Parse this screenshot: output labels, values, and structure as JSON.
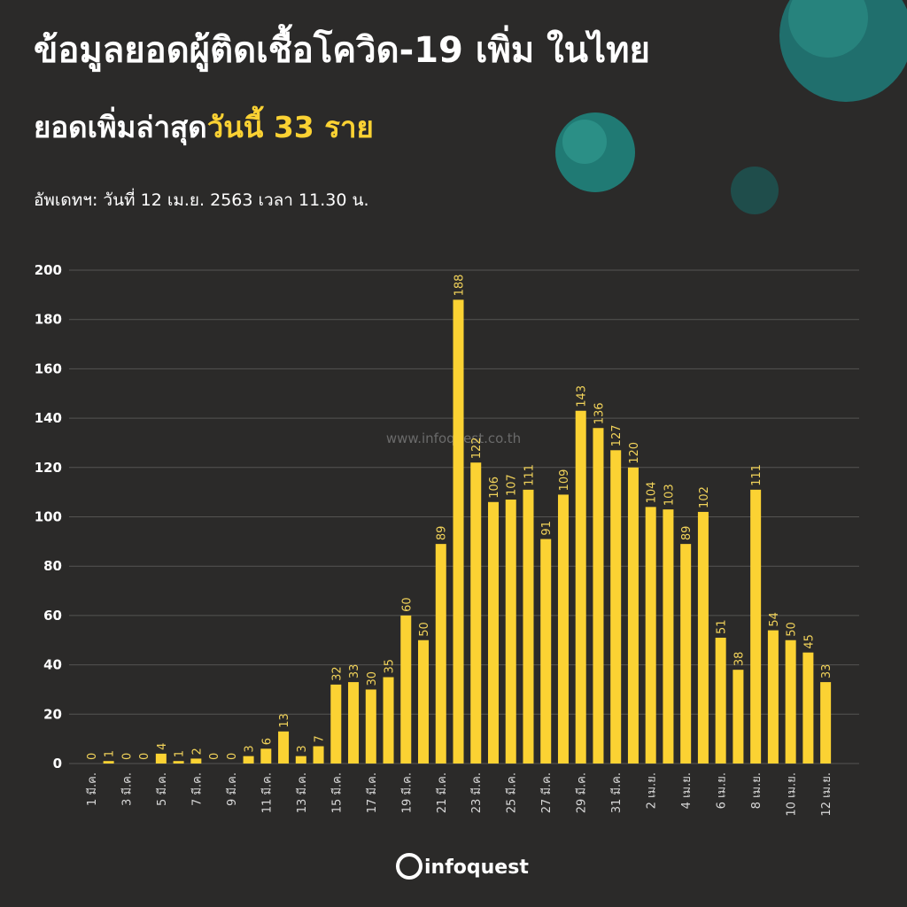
{
  "chart_data": {
    "type": "bar",
    "title": "ข้อมูลยอดผู้ติดเชื้อโควิด-19 เพิ่ม ในไทย",
    "subtitle": [
      "ยอดเพิ่มล่าสุด",
      "วันนี้ 33 ราย"
    ],
    "update_note": "อัพเดทฯ: วันที่  12 เม.ย. 2563 เวลา 11.30 น.",
    "watermark": "www.infoquest.co.th",
    "logo": "infoquest",
    "categories": [
      "1 มี.ค.",
      null,
      "3 มี.ค.",
      null,
      "5 มี.ค.",
      null,
      "7 มี.ค.",
      null,
      "9 มี.ค.",
      null,
      "11 มี.ค.",
      null,
      "13 มี.ค.",
      null,
      "15 มี.ค.",
      null,
      "17 มี.ค.",
      null,
      "19 มี.ค.",
      null,
      "21 มี.ค.",
      null,
      "23 มี.ค.",
      null,
      "25 มี.ค.",
      null,
      "27 มี.ค.",
      null,
      "29 มี.ค.",
      null,
      "31 มี.ค.",
      null,
      "2 เม.ย.",
      null,
      "4 เม.ย.",
      null,
      "6 เม.ย.",
      null,
      "8 เม.ย.",
      null,
      "10 เม.ย.",
      null,
      "12 เม.ย."
    ],
    "values": [
      0,
      1,
      0,
      0,
      4,
      1,
      2,
      0,
      0,
      3,
      6,
      13,
      3,
      7,
      32,
      33,
      30,
      35,
      60,
      50,
      89,
      188,
      122,
      106,
      107,
      111,
      91,
      109,
      143,
      136,
      127,
      120,
      104,
      103,
      89,
      102,
      51,
      38,
      111,
      54,
      50,
      45,
      33
    ],
    "color": "#fbd233",
    "ylim": [
      0,
      200
    ],
    "yticks": [
      0,
      20,
      40,
      60,
      80,
      100,
      120,
      140,
      160,
      180,
      200
    ],
    "grid": true
  }
}
